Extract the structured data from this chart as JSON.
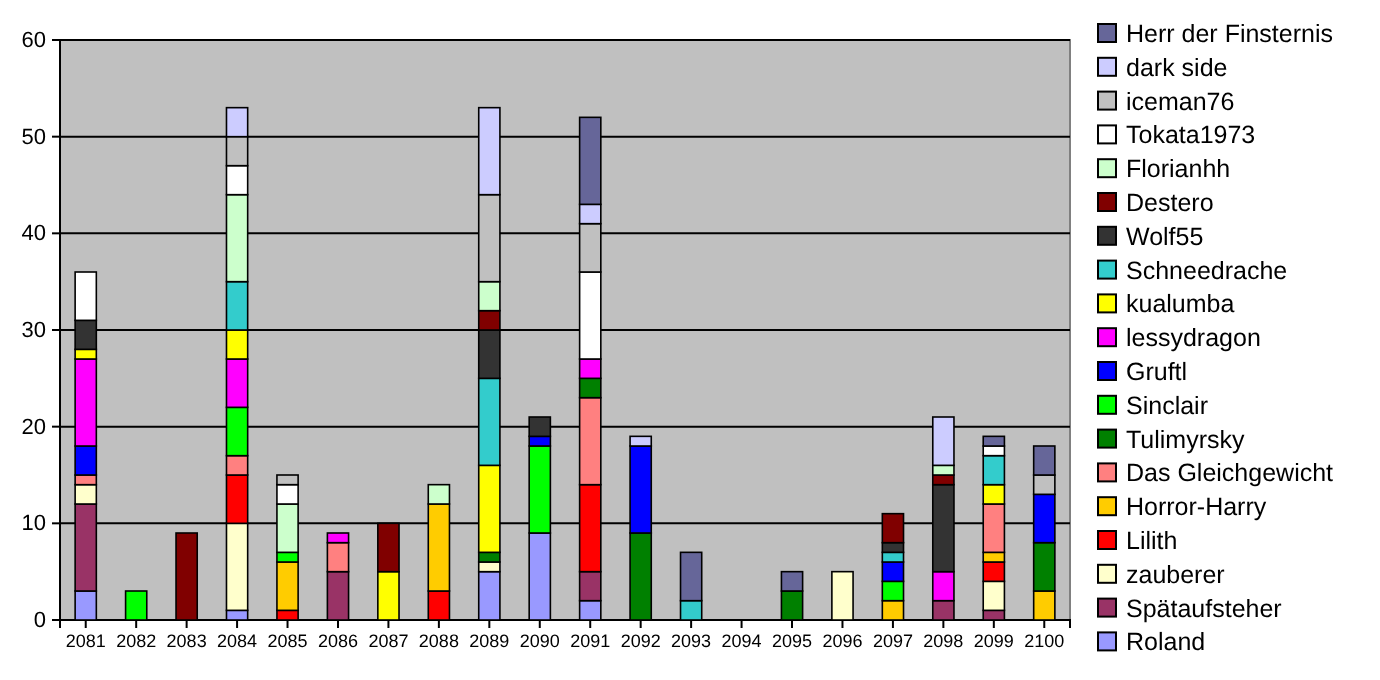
{
  "chart_data": {
    "type": "bar",
    "stacked": true,
    "categories": [
      "2081",
      "2082",
      "2083",
      "2084",
      "2085",
      "2086",
      "2087",
      "2088",
      "2089",
      "2090",
      "2091",
      "2092",
      "2093",
      "2094",
      "2095",
      "2096",
      "2097",
      "2098",
      "2099",
      "2100"
    ],
    "ylim": [
      0,
      60
    ],
    "yticks": [
      0,
      10,
      20,
      30,
      40,
      50,
      60
    ],
    "grid": "y",
    "legend": "right",
    "series": [
      {
        "name": "Roland",
        "color": "#9999ff",
        "values": [
          3,
          null,
          null,
          1,
          null,
          null,
          null,
          null,
          5,
          9,
          2,
          null,
          null,
          null,
          null,
          null,
          null,
          null,
          null,
          null
        ]
      },
      {
        "name": "Spätaufsteher",
        "color": "#993366",
        "values": [
          9,
          null,
          null,
          null,
          null,
          5,
          null,
          null,
          null,
          null,
          3,
          null,
          null,
          null,
          null,
          null,
          null,
          2,
          1,
          null
        ]
      },
      {
        "name": "zauberer",
        "color": "#ffffcc",
        "values": [
          2,
          null,
          null,
          9,
          null,
          null,
          null,
          null,
          1,
          null,
          null,
          null,
          null,
          null,
          null,
          5,
          null,
          null,
          3,
          null
        ]
      },
      {
        "name": "Lilith",
        "color": "#ff0000",
        "values": [
          null,
          null,
          null,
          5,
          1,
          null,
          null,
          3,
          null,
          null,
          9,
          null,
          null,
          null,
          null,
          null,
          null,
          null,
          2,
          null
        ]
      },
      {
        "name": "Horror-Harry",
        "color": "#ffcc00",
        "values": [
          null,
          null,
          null,
          null,
          5,
          null,
          null,
          9,
          null,
          null,
          null,
          null,
          null,
          null,
          null,
          null,
          2,
          null,
          1,
          3
        ]
      },
      {
        "name": "Das Gleichgewicht",
        "color": "#ff8080",
        "values": [
          1,
          null,
          null,
          2,
          null,
          3,
          null,
          null,
          null,
          null,
          9,
          null,
          null,
          null,
          null,
          null,
          null,
          null,
          5,
          null
        ]
      },
      {
        "name": "Tulimyrsky",
        "color": "#008000",
        "values": [
          null,
          null,
          null,
          null,
          null,
          null,
          null,
          null,
          1,
          null,
          2,
          9,
          null,
          null,
          3,
          null,
          null,
          null,
          null,
          5
        ]
      },
      {
        "name": "Sinclair",
        "color": "#00ff00",
        "values": [
          null,
          3,
          null,
          5,
          1,
          null,
          null,
          null,
          null,
          9,
          null,
          null,
          null,
          null,
          null,
          null,
          2,
          null,
          null,
          null
        ]
      },
      {
        "name": "Gruftl",
        "color": "#0000ff",
        "values": [
          3,
          null,
          null,
          null,
          null,
          null,
          null,
          null,
          null,
          1,
          null,
          9,
          null,
          null,
          null,
          null,
          2,
          null,
          null,
          5
        ]
      },
      {
        "name": "lessydragon",
        "color": "#ff00ff",
        "values": [
          9,
          null,
          null,
          5,
          null,
          1,
          null,
          null,
          null,
          null,
          2,
          null,
          null,
          null,
          null,
          null,
          null,
          3,
          null,
          null
        ]
      },
      {
        "name": "kualumba",
        "color": "#ffff00",
        "values": [
          1,
          null,
          null,
          3,
          null,
          null,
          5,
          null,
          9,
          null,
          null,
          null,
          null,
          null,
          null,
          null,
          null,
          null,
          2,
          null
        ]
      },
      {
        "name": "Schneedrache",
        "color": "#33cccc",
        "values": [
          null,
          null,
          null,
          5,
          null,
          null,
          null,
          null,
          9,
          null,
          null,
          null,
          2,
          null,
          null,
          null,
          1,
          null,
          3,
          null
        ]
      },
      {
        "name": "Wolf55",
        "color": "#333333",
        "values": [
          3,
          null,
          null,
          null,
          null,
          null,
          null,
          null,
          5,
          2,
          null,
          null,
          null,
          null,
          null,
          null,
          1,
          9,
          null,
          null
        ]
      },
      {
        "name": "Destero",
        "color": "#800000",
        "values": [
          null,
          null,
          9,
          null,
          null,
          null,
          5,
          null,
          2,
          null,
          null,
          null,
          null,
          null,
          null,
          null,
          3,
          1,
          null,
          null
        ]
      },
      {
        "name": "Florianhh",
        "color": "#ccffcc",
        "values": [
          null,
          null,
          null,
          9,
          5,
          null,
          null,
          2,
          3,
          null,
          null,
          null,
          null,
          null,
          null,
          null,
          null,
          1,
          null,
          null
        ]
      },
      {
        "name": "Tokata1973",
        "color": "#ffffff",
        "values": [
          5,
          null,
          null,
          3,
          2,
          null,
          null,
          null,
          null,
          null,
          9,
          null,
          null,
          null,
          null,
          null,
          null,
          null,
          1,
          null
        ]
      },
      {
        "name": "iceman76",
        "color": "#c0c0c0",
        "values": [
          null,
          null,
          null,
          3,
          1,
          null,
          null,
          null,
          9,
          null,
          5,
          null,
          null,
          null,
          null,
          null,
          null,
          null,
          null,
          2
        ]
      },
      {
        "name": "dark side",
        "color": "#ccccff",
        "values": [
          null,
          null,
          null,
          3,
          null,
          null,
          null,
          null,
          9,
          null,
          2,
          1,
          null,
          null,
          null,
          null,
          null,
          5,
          null,
          null
        ]
      },
      {
        "name": "Herr der Finsternis",
        "color": "#666699",
        "values": [
          null,
          null,
          null,
          null,
          null,
          null,
          null,
          null,
          null,
          null,
          9,
          null,
          5,
          null,
          2,
          null,
          null,
          null,
          1,
          3
        ]
      }
    ]
  }
}
